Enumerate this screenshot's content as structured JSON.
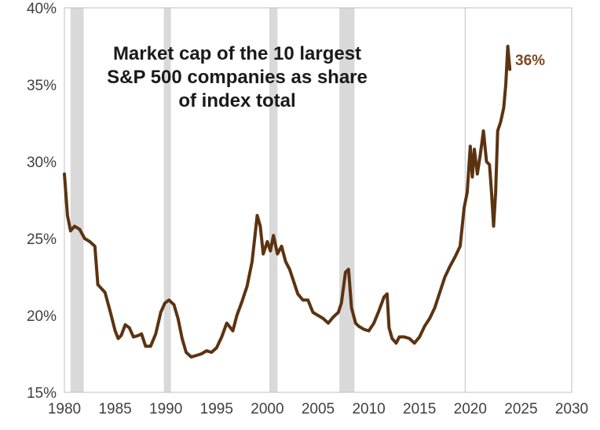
{
  "chart_data": {
    "type": "line",
    "title_lines": [
      "Market cap of the 10 largest",
      "S&P 500 companies as share",
      "of index total"
    ],
    "xlabel": "",
    "ylabel": "",
    "xlim": [
      1980,
      2030
    ],
    "ylim": [
      15,
      40
    ],
    "x_ticks": [
      "1980",
      "1985",
      "1990",
      "1995",
      "2000",
      "2005",
      "2010",
      "2015",
      "2020",
      "2025",
      "2030"
    ],
    "y_ticks": [
      "15%",
      "20%",
      "25%",
      "30%",
      "35%",
      "40%"
    ],
    "grid": false,
    "recession_bands": [
      [
        1980.6,
        1981.9
      ],
      [
        1989.8,
        1990.5
      ],
      [
        2000.2,
        2001.0
      ],
      [
        2007.1,
        2008.6
      ]
    ],
    "reference_line_x": 2019.5,
    "end_label": "36%",
    "colors": {
      "line": "#5c3311",
      "band": "#d9d9d9",
      "end_label": "#7a4a1e",
      "axis": "#bfbfbf"
    },
    "series": [
      {
        "x": [
          1980.0,
          1980.3,
          1980.6,
          1981.0,
          1981.5,
          1982.0,
          1982.5,
          1983.0,
          1983.3,
          1984.0,
          1984.5,
          1985.0,
          1985.3,
          1985.6,
          1986.0,
          1986.4,
          1986.8,
          1987.3,
          1987.6,
          1988.0,
          1988.5,
          1989.0,
          1989.5,
          1989.9,
          1990.3,
          1990.8,
          1991.2,
          1991.6,
          1992.0,
          1992.5,
          1993.0,
          1993.5,
          1994.0,
          1994.5,
          1995.0,
          1995.5,
          1996.0,
          1996.6,
          1997.0,
          1997.5,
          1998.0,
          1998.5,
          1999.0,
          1999.3,
          1999.6,
          2000.0,
          2000.3,
          2000.6,
          2001.0,
          2001.4,
          2001.8,
          2002.2,
          2002.6,
          2003.0,
          2003.5,
          2004.0,
          2004.5,
          2005.0,
          2005.5,
          2006.0,
          2006.5,
          2007.0,
          2007.3,
          2007.7,
          2008.0,
          2008.3,
          2008.7,
          2009.0,
          2009.5,
          2010.0,
          2010.5,
          2011.0,
          2011.5,
          2011.8,
          2012.0,
          2012.3,
          2012.7,
          2013.0,
          2013.5,
          2014.0,
          2014.5,
          2015.0,
          2015.5,
          2016.0,
          2016.5,
          2017.0,
          2017.5,
          2018.0,
          2018.5,
          2019.0,
          2019.4,
          2019.7,
          2020.0,
          2020.2,
          2020.4,
          2020.7,
          2021.0,
          2021.3,
          2021.6,
          2021.9,
          2022.1,
          2022.3,
          2022.5,
          2022.7,
          2023.0,
          2023.3,
          2023.5,
          2023.7,
          2023.9
        ],
        "y": [
          29.2,
          26.5,
          25.5,
          25.8,
          25.6,
          25.0,
          24.8,
          24.5,
          22.0,
          21.5,
          20.3,
          19.0,
          18.5,
          18.7,
          19.4,
          19.2,
          18.6,
          18.7,
          18.8,
          18.0,
          18.0,
          18.8,
          20.2,
          20.8,
          21.0,
          20.7,
          19.8,
          18.5,
          17.6,
          17.3,
          17.4,
          17.5,
          17.7,
          17.6,
          17.9,
          18.6,
          19.5,
          19.0,
          20.0,
          20.9,
          21.9,
          23.5,
          26.5,
          25.8,
          24.0,
          24.8,
          24.2,
          25.2,
          24.0,
          24.5,
          23.5,
          23.0,
          22.2,
          21.4,
          21.0,
          21.0,
          20.2,
          20.0,
          19.8,
          19.5,
          19.9,
          20.2,
          20.8,
          22.8,
          23.0,
          20.5,
          19.5,
          19.3,
          19.1,
          19.0,
          19.5,
          20.3,
          21.2,
          21.4,
          19.2,
          18.5,
          18.2,
          18.6,
          18.6,
          18.5,
          18.2,
          18.6,
          19.3,
          19.8,
          20.5,
          21.5,
          22.5,
          23.2,
          23.8,
          24.5,
          27.0,
          28.0,
          31.0,
          29.0,
          30.8,
          29.2,
          30.5,
          32.0,
          30.0,
          29.8,
          28.0,
          25.8,
          28.0,
          32.0,
          32.6,
          33.5,
          35.0,
          37.5,
          36.0
        ]
      }
    ]
  }
}
